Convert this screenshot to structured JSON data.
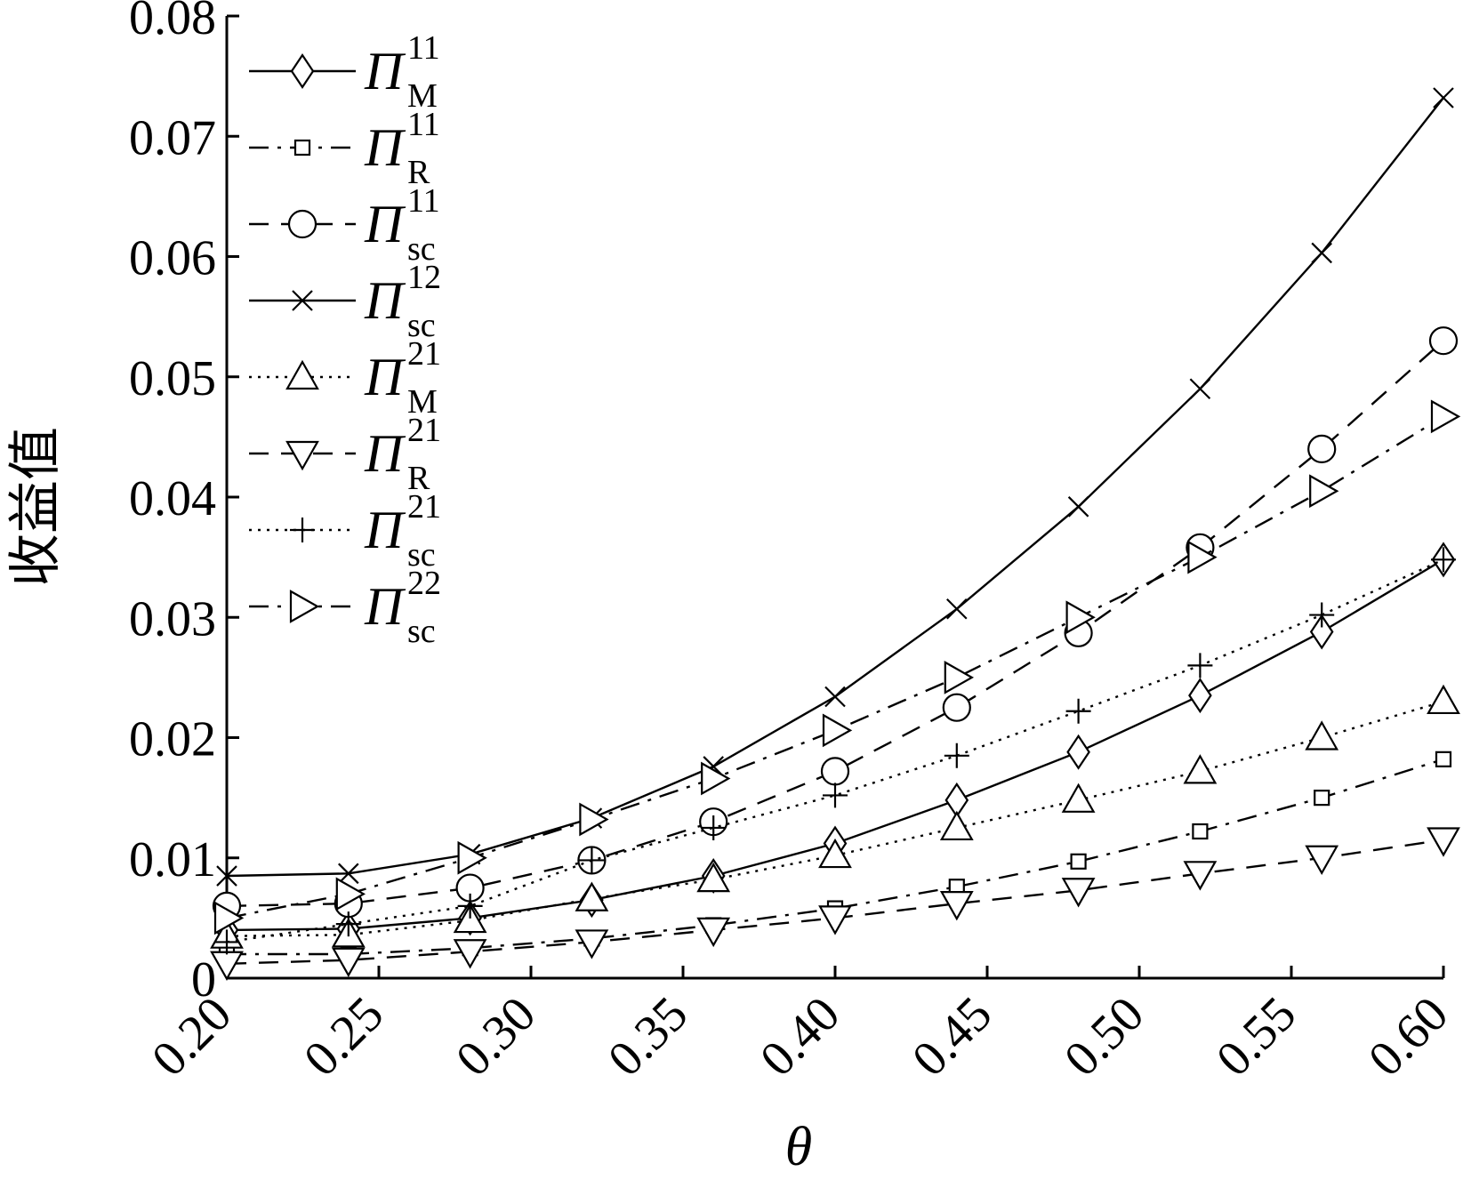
{
  "chart_data": {
    "type": "line",
    "xlabel": "θ",
    "ylabel": "收益值",
    "xlim": [
      0.2,
      0.6
    ],
    "ylim": [
      0,
      0.08
    ],
    "x_ticks": [
      "0.20",
      "0.25",
      "0.30",
      "0.35",
      "0.40",
      "0.45",
      "0.50",
      "0.55",
      "0.60"
    ],
    "y_ticks": [
      "0",
      "0.01",
      "0.02",
      "0.03",
      "0.04",
      "0.05",
      "0.06",
      "0.07",
      "0.08"
    ],
    "grid": false,
    "legend_position": "top-left",
    "x": [
      0.2,
      0.24,
      0.28,
      0.32,
      0.36,
      0.4,
      0.44,
      0.48,
      0.52,
      0.56,
      0.6
    ],
    "series": [
      {
        "name": "Π",
        "sup": "11",
        "sub": "M",
        "marker": "diamond",
        "dash": "solid",
        "values": [
          0.004,
          0.0041,
          0.005,
          0.0065,
          0.0085,
          0.0112,
          0.0148,
          0.0188,
          0.0235,
          0.0288,
          0.0348
        ]
      },
      {
        "name": "Π",
        "sup": "11",
        "sub": "R",
        "marker": "square",
        "dash": "dashdot",
        "values": [
          0.002,
          0.002,
          0.0025,
          0.0033,
          0.0044,
          0.0058,
          0.0076,
          0.0097,
          0.0122,
          0.015,
          0.0182
        ]
      },
      {
        "name": "Π",
        "sup": "11",
        "sub": "sc",
        "marker": "circle",
        "dash": "dashed",
        "values": [
          0.006,
          0.0062,
          0.0075,
          0.0098,
          0.013,
          0.0172,
          0.0225,
          0.0287,
          0.0358,
          0.044,
          0.053
        ]
      },
      {
        "name": "Π",
        "sup": "12",
        "sub": "sc",
        "marker": "x",
        "dash": "solid",
        "values": [
          0.0085,
          0.0087,
          0.0103,
          0.0133,
          0.0176,
          0.0234,
          0.0307,
          0.0392,
          0.049,
          0.0603,
          0.0732
        ]
      },
      {
        "name": "Π",
        "sup": "21",
        "sub": "M",
        "marker": "triangle-up",
        "dash": "dotted",
        "values": [
          0.0035,
          0.0036,
          0.0048,
          0.0066,
          0.0082,
          0.0102,
          0.0125,
          0.0148,
          0.0172,
          0.02,
          0.023
        ]
      },
      {
        "name": "Π",
        "sup": "21",
        "sub": "R",
        "marker": "triangle-down",
        "dash": "dashed",
        "values": [
          0.0012,
          0.0015,
          0.0022,
          0.003,
          0.004,
          0.005,
          0.0062,
          0.0073,
          0.0087,
          0.01,
          0.0115
        ]
      },
      {
        "name": "Π",
        "sup": "21",
        "sub": "sc",
        "marker": "plus",
        "dash": "dotted",
        "values": [
          0.003,
          0.0045,
          0.006,
          0.0098,
          0.0125,
          0.0152,
          0.0185,
          0.0222,
          0.026,
          0.0302,
          0.0348
        ]
      },
      {
        "name": "Π",
        "sup": "22",
        "sub": "sc",
        "marker": "triangle-right",
        "dash": "dashdot",
        "values": [
          0.005,
          0.007,
          0.01,
          0.0132,
          0.0166,
          0.0206,
          0.025,
          0.03,
          0.035,
          0.0405,
          0.0467
        ]
      }
    ]
  }
}
